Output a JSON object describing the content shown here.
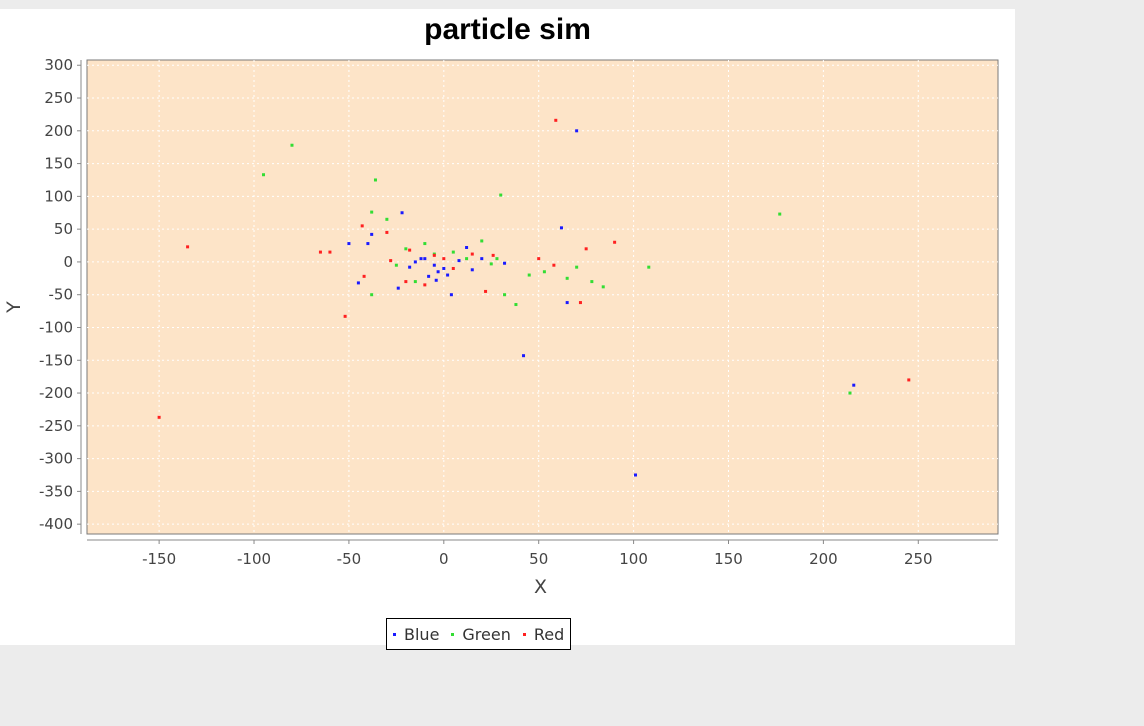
{
  "colors": {
    "plot_background": "#fde4c8",
    "gridline": "#ffffff",
    "blue": "#1a1aff",
    "green": "#33dd33",
    "red": "#ff2020"
  },
  "chart_data": {
    "type": "scatter",
    "title": "particle sim",
    "xlabel": "X",
    "ylabel": "Y",
    "xlim": [
      -188,
      292
    ],
    "ylim": [
      -415,
      308
    ],
    "xticks": [
      -150,
      -100,
      -50,
      0,
      50,
      100,
      150,
      200,
      250
    ],
    "yticks": [
      300,
      250,
      200,
      150,
      100,
      50,
      0,
      -50,
      -100,
      -150,
      -200,
      -250,
      -300,
      -350,
      -400
    ],
    "grid": true,
    "legend_position": "bottom",
    "series": [
      {
        "name": "Blue",
        "color": "#1a1aff",
        "points": [
          [
            70,
            200
          ],
          [
            -22,
            75
          ],
          [
            62,
            52
          ],
          [
            -38,
            42
          ],
          [
            -50,
            28
          ],
          [
            -40,
            28
          ],
          [
            -12,
            5
          ],
          [
            -15,
            0
          ],
          [
            -10,
            5
          ],
          [
            -5,
            -5
          ],
          [
            0,
            -10
          ],
          [
            -3,
            -15
          ],
          [
            2,
            -20
          ],
          [
            -8,
            -22
          ],
          [
            -4,
            -28
          ],
          [
            15,
            -12
          ],
          [
            12,
            22
          ],
          [
            32,
            -2
          ],
          [
            4,
            -50
          ],
          [
            -45,
            -32
          ],
          [
            -24,
            -40
          ],
          [
            65,
            -62
          ],
          [
            42,
            -143
          ],
          [
            216,
            -188
          ],
          [
            101,
            -325
          ],
          [
            8,
            2
          ],
          [
            -18,
            -8
          ],
          [
            20,
            5
          ]
        ]
      },
      {
        "name": "Green",
        "color": "#33dd33",
        "points": [
          [
            -80,
            178
          ],
          [
            -95,
            133
          ],
          [
            -36,
            125
          ],
          [
            30,
            102
          ],
          [
            177,
            73
          ],
          [
            -38,
            76
          ],
          [
            -30,
            65
          ],
          [
            -20,
            20
          ],
          [
            -10,
            28
          ],
          [
            20,
            32
          ],
          [
            -5,
            12
          ],
          [
            28,
            5
          ],
          [
            53,
            -15
          ],
          [
            70,
            -8
          ],
          [
            108,
            -8
          ],
          [
            78,
            -30
          ],
          [
            84,
            -38
          ],
          [
            32,
            -50
          ],
          [
            38,
            -65
          ],
          [
            -38,
            -50
          ],
          [
            214,
            -200
          ],
          [
            5,
            15
          ],
          [
            12,
            5
          ],
          [
            25,
            -3
          ],
          [
            45,
            -20
          ],
          [
            -15,
            -30
          ],
          [
            -25,
            -5
          ],
          [
            65,
            -25
          ]
        ]
      },
      {
        "name": "Red",
        "color": "#ff2020",
        "points": [
          [
            59,
            216
          ],
          [
            -135,
            23
          ],
          [
            -43,
            55
          ],
          [
            -30,
            45
          ],
          [
            -65,
            15
          ],
          [
            -60,
            15
          ],
          [
            -28,
            2
          ],
          [
            -18,
            18
          ],
          [
            -5,
            10
          ],
          [
            5,
            -10
          ],
          [
            50,
            5
          ],
          [
            58,
            -5
          ],
          [
            75,
            20
          ],
          [
            90,
            30
          ],
          [
            22,
            -45
          ],
          [
            -52,
            -83
          ],
          [
            -150,
            -237
          ],
          [
            245,
            -180
          ],
          [
            -20,
            -30
          ],
          [
            -10,
            -35
          ],
          [
            -42,
            -22
          ],
          [
            26,
            10
          ],
          [
            0,
            5
          ],
          [
            15,
            12
          ],
          [
            72,
            -62
          ]
        ]
      }
    ]
  }
}
